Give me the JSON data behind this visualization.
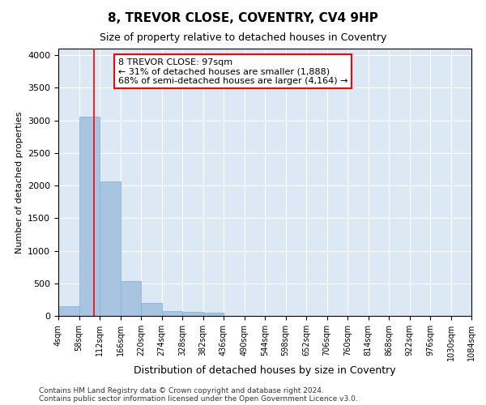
{
  "title": "8, TREVOR CLOSE, COVENTRY, CV4 9HP",
  "subtitle": "Size of property relative to detached houses in Coventry",
  "xlabel": "Distribution of detached houses by size in Coventry",
  "ylabel": "Number of detached properties",
  "bar_color": "#a8c4e0",
  "bar_edge_color": "#7aafd4",
  "bg_color": "#dce9f5",
  "grid_color": "#ffffff",
  "property_line_x": 97,
  "annotation_text": "8 TREVOR CLOSE: 97sqm\n← 31% of detached houses are smaller (1,888)\n68% of semi-detached houses are larger (4,164) →",
  "footer1": "Contains HM Land Registry data © Crown copyright and database right 2024.",
  "footer2": "Contains public sector information licensed under the Open Government Licence v3.0.",
  "bin_edges": [
    4,
    58,
    112,
    166,
    220,
    274,
    328,
    382,
    436,
    490,
    544,
    598,
    652,
    706,
    760,
    814,
    868,
    922,
    976,
    1030,
    1084
  ],
  "bar_heights": [
    150,
    3060,
    2060,
    540,
    200,
    80,
    60,
    50,
    0,
    0,
    0,
    0,
    0,
    0,
    0,
    0,
    0,
    0,
    0,
    0
  ],
  "ylim": [
    0,
    4100
  ],
  "yticks": [
    0,
    500,
    1000,
    1500,
    2000,
    2500,
    3000,
    3500,
    4000
  ]
}
